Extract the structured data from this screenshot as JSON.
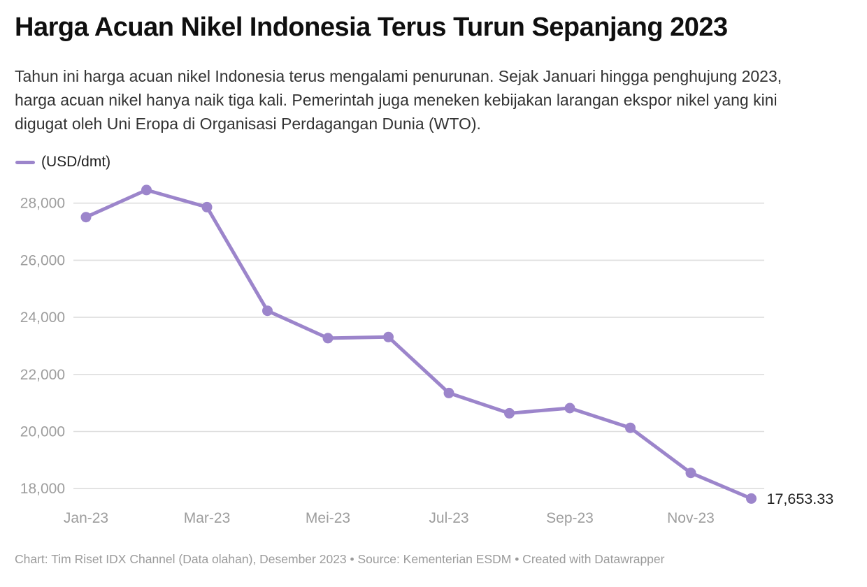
{
  "header": {
    "title": "Harga Acuan Nikel Indonesia Terus Turun Sepanjang 2023",
    "description": "Tahun ini harga acuan nikel Indonesia terus mengalami penurunan. Sejak Januari hingga penghujung 2023, harga acuan nikel hanya naik tiga kali. Pemerintah juga meneken kebijakan larangan ekspor nikel yang kini digugat oleh Uni Eropa di Organisasi Perdagangan Dunia (WTO)."
  },
  "legend": {
    "label": "(USD/dmt)",
    "swatch_color": "#9c85cb"
  },
  "chart_data": {
    "type": "line",
    "title": "Harga Acuan Nikel Indonesia Terus Turun Sepanjang 2023",
    "unit": "USD/dmt",
    "categories": [
      "Jan-23",
      "Feb-23",
      "Mar-23",
      "Apr-23",
      "Mei-23",
      "Jun-23",
      "Jul-23",
      "Agu-23",
      "Sep-23",
      "Okt-23",
      "Nov-23",
      "Des-23"
    ],
    "values": [
      27510,
      28460,
      27860,
      24230,
      23270,
      23310,
      21350,
      20640,
      20820,
      20130,
      18550,
      17653.33
    ],
    "x_tick_indices": [
      0,
      2,
      4,
      6,
      8,
      10
    ],
    "x_tick_labels": [
      "Jan-23",
      "Mar-23",
      "Mei-23",
      "Jul-23",
      "Sep-23",
      "Nov-23"
    ],
    "y_ticks": [
      18000,
      20000,
      22000,
      24000,
      26000,
      28000
    ],
    "y_tick_labels": [
      "18,000",
      "20,000",
      "22,000",
      "24,000",
      "26,000",
      "28,000"
    ],
    "ylim": [
      17500,
      28700
    ],
    "grid": "horizontal",
    "legend_position": "top-left",
    "line_color": "#9c85cb",
    "point_color": "#9c85cb",
    "gridline_color": "#dedede",
    "axis_text_color": "#9d9d9d",
    "last_point_label": "17,653.33",
    "last_point_label_color": "#1f1f1f"
  },
  "footer": {
    "text": "Chart: Tim Riset IDX Channel (Data olahan), Desember 2023 • Source: Kementerian ESDM • Created with Datawrapper"
  }
}
